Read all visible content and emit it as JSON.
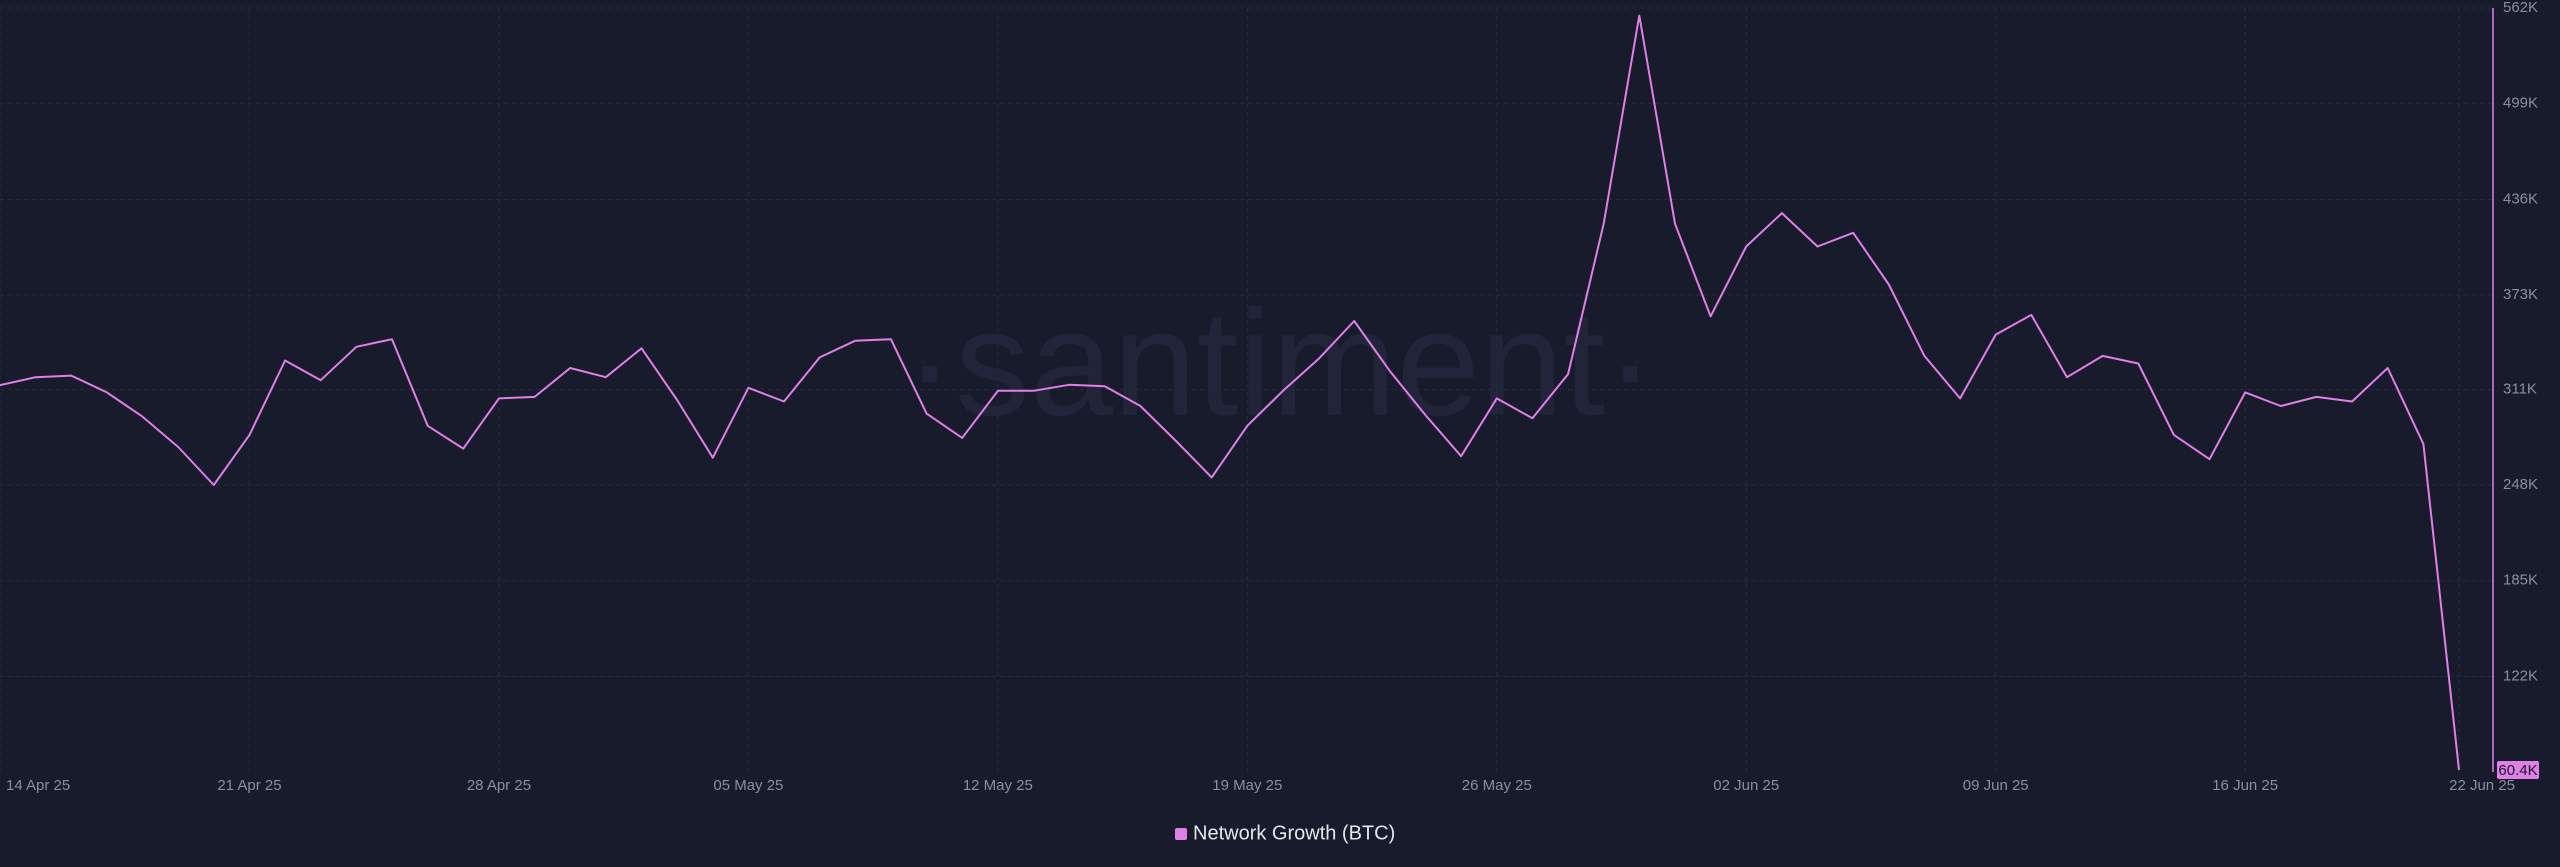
{
  "chart_data": {
    "type": "line",
    "watermark": "·santiment·",
    "x": [
      "2025-04-14",
      "2025-04-15",
      "2025-04-16",
      "2025-04-17",
      "2025-04-18",
      "2025-04-19",
      "2025-04-20",
      "2025-04-21",
      "2025-04-22",
      "2025-04-23",
      "2025-04-24",
      "2025-04-25",
      "2025-04-26",
      "2025-04-27",
      "2025-04-28",
      "2025-04-29",
      "2025-04-30",
      "2025-05-01",
      "2025-05-02",
      "2025-05-03",
      "2025-05-04",
      "2025-05-05",
      "2025-05-06",
      "2025-05-07",
      "2025-05-08",
      "2025-05-09",
      "2025-05-10",
      "2025-05-11",
      "2025-05-12",
      "2025-05-13",
      "2025-05-14",
      "2025-05-15",
      "2025-05-16",
      "2025-05-17",
      "2025-05-18",
      "2025-05-19",
      "2025-05-20",
      "2025-05-21",
      "2025-05-22",
      "2025-05-23",
      "2025-05-24",
      "2025-05-25",
      "2025-05-26",
      "2025-05-27",
      "2025-05-28",
      "2025-05-29",
      "2025-05-30",
      "2025-05-31",
      "2025-06-01",
      "2025-06-02",
      "2025-06-03",
      "2025-06-04",
      "2025-06-05",
      "2025-06-06",
      "2025-06-07",
      "2025-06-08",
      "2025-06-09",
      "2025-06-10",
      "2025-06-11",
      "2025-06-12",
      "2025-06-13",
      "2025-06-14",
      "2025-06-15",
      "2025-06-16",
      "2025-06-17",
      "2025-06-18",
      "2025-06-19",
      "2025-06-20",
      "2025-06-21",
      "2025-06-22"
    ],
    "series": [
      {
        "name": "Network Growth (BTC)",
        "color": "#e07fe6",
        "values": [
          313700,
          319000,
          320000,
          309000,
          293000,
          273000,
          248000,
          281000,
          330000,
          317000,
          339000,
          344000,
          287000,
          272000,
          305000,
          306000,
          325000,
          319000,
          338000,
          304000,
          266000,
          312000,
          303000,
          332000,
          343000,
          344000,
          295000,
          279000,
          310000,
          310000,
          314000,
          313000,
          300000,
          277000,
          253000,
          287000,
          310000,
          331000,
          356000,
          323000,
          294000,
          267000,
          305000,
          292000,
          321000,
          420000,
          557000,
          420000,
          359000,
          405000,
          427000,
          405000,
          414000,
          380000,
          333000,
          305000,
          347000,
          360000,
          319000,
          333000,
          328000,
          281000,
          265000,
          309000,
          300000,
          306000,
          303000,
          325000,
          275000,
          60400
        ],
        "value_labels": [
          null,
          null,
          null,
          null,
          null,
          null,
          null,
          null,
          null,
          null,
          null,
          null,
          null,
          null,
          null,
          null,
          null,
          null,
          null,
          null,
          null,
          null,
          null,
          null,
          null,
          null,
          null,
          null,
          null,
          null,
          null,
          null,
          null,
          null,
          null,
          null,
          null,
          null,
          null,
          null,
          null,
          null,
          null,
          null,
          null,
          null,
          null,
          null,
          null,
          null,
          null,
          null,
          null,
          null,
          null,
          null,
          null,
          null,
          null,
          null,
          null,
          null,
          null,
          null,
          null,
          null,
          null,
          null,
          null,
          "60.4K"
        ]
      }
    ],
    "xticks": [
      {
        "value": "2025-04-14",
        "label": "14 Apr 25"
      },
      {
        "value": "2025-04-21",
        "label": "21 Apr 25"
      },
      {
        "value": "2025-04-28",
        "label": "28 Apr 25"
      },
      {
        "value": "2025-05-05",
        "label": "05 May 25"
      },
      {
        "value": "2025-05-12",
        "label": "12 May 25"
      },
      {
        "value": "2025-05-19",
        "label": "19 May 25"
      },
      {
        "value": "2025-05-26",
        "label": "26 May 25"
      },
      {
        "value": "2025-06-02",
        "label": "02 Jun 25"
      },
      {
        "value": "2025-06-09",
        "label": "09 Jun 25"
      },
      {
        "value": "2025-06-16",
        "label": "16 Jun 25"
      },
      {
        "value": "2025-06-22",
        "label": "22 Jun 25"
      }
    ],
    "ylim": [
      59100,
      562000
    ],
    "yticks": [
      {
        "value": 562000,
        "label": "562K"
      },
      {
        "value": 499000,
        "label": "499K"
      },
      {
        "value": 436000,
        "label": "436K"
      },
      {
        "value": 373000,
        "label": "373K"
      },
      {
        "value": 311000,
        "label": "311K"
      },
      {
        "value": 248000,
        "label": "248K"
      },
      {
        "value": 185000,
        "label": "185K"
      },
      {
        "value": 122000,
        "label": "122K"
      }
    ],
    "grid": true
  }
}
